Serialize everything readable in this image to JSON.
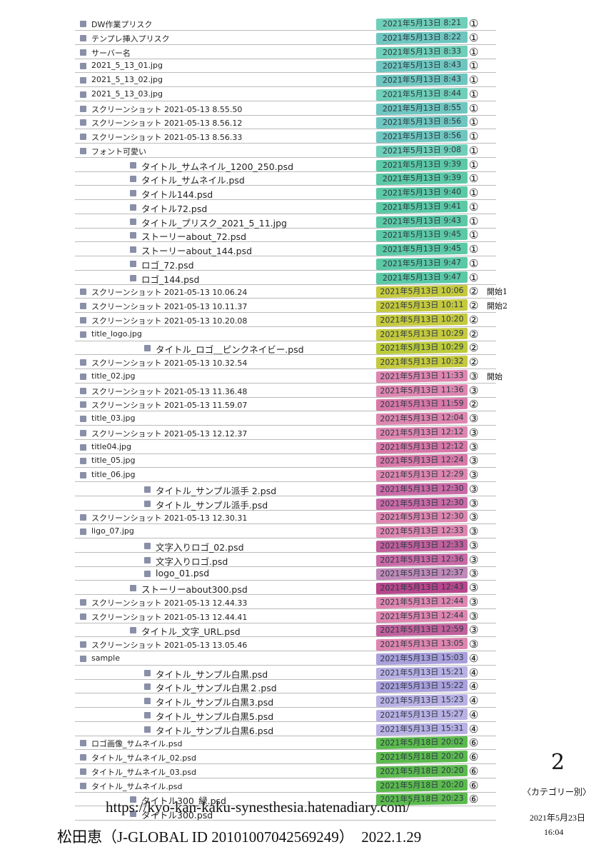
{
  "rows": [
    {
      "name": "DW作業プリスク",
      "date": "2021年5月13日 8:21",
      "mark": "①",
      "color": "#6fcfb8"
    },
    {
      "name": "テンプレ挿入プリスク",
      "date": "2021年5月13日 8:22",
      "mark": "①",
      "color": "#6fc6c0"
    },
    {
      "name": "サーバー名",
      "date": "2021年5月13日 8:33",
      "mark": "①",
      "color": "#6fcfb8"
    },
    {
      "name": "2021_5_13_01.jpg",
      "date": "2021年5月13日 8:43",
      "mark": "①",
      "color": "#6fc6c0"
    },
    {
      "name": "2021_5_13_02.jpg",
      "date": "2021年5月13日 8:43",
      "mark": "①",
      "color": "#6fc6c0"
    },
    {
      "name": "2021_5_13_03.jpg",
      "date": "2021年5月13日 8:44",
      "mark": "①",
      "color": "#6fcfb8"
    },
    {
      "name": "スクリーンショット 2021-05-13 8.55.50",
      "date": "2021年5月13日 8:55",
      "mark": "①",
      "color": "#6fc6c0"
    },
    {
      "name": "スクリーンショット 2021-05-13 8.56.12",
      "date": "2021年5月13日 8:56",
      "mark": "①",
      "color": "#6fc6c0"
    },
    {
      "name": "スクリーンショット 2021-05-13 8.56.33",
      "date": "2021年5月13日 8:56",
      "mark": "①",
      "color": "#6fc6c0"
    },
    {
      "name": "フォント可愛い",
      "date": "2021年5月13日 9:08",
      "mark": "①",
      "color": "#6fcfb8"
    },
    {
      "name": "タイトル_サムネイル_1200_250.psd",
      "date": "2021年5月13日 9:39",
      "mark": "①",
      "color": "#5cc9a6"
    },
    {
      "name": "タイトル_サムネイル.psd",
      "date": "2021年5月13日 9:39",
      "mark": "①",
      "color": "#5cc9a6"
    },
    {
      "name": "タイトル144.psd",
      "date": "2021年5月13日 9:40",
      "mark": "①",
      "color": "#5cc9a6"
    },
    {
      "name": "タイトル72.psd",
      "date": "2021年5月13日 9:41",
      "mark": "①",
      "color": "#5cc9a6"
    },
    {
      "name": "タイトル_プリスク_2021_5_11.jpg",
      "date": "2021年5月13日 9:43",
      "mark": "①",
      "color": "#5cc9a6"
    },
    {
      "name": "ストーリーabout_72.psd",
      "date": "2021年5月13日 9:45",
      "mark": "①",
      "color": "#5cc9a6"
    },
    {
      "name": "ストーリーabout_144.psd",
      "date": "2021年5月13日 9:45",
      "mark": "①",
      "color": "#5cc9a6"
    },
    {
      "name": "ロゴ_72.psd",
      "date": "2021年5月13日 9:47",
      "mark": "①",
      "color": "#5cc9a6"
    },
    {
      "name": "ロゴ_144.psd",
      "date": "2021年5月13日 9:47",
      "mark": "①",
      "color": "#5cc9a6"
    },
    {
      "name": "スクリーンショット 2021-05-13 10.06.24",
      "date": "2021年5月13日 10:06",
      "mark": "②",
      "note": "開始1",
      "color": "#c5c93e"
    },
    {
      "name": "スクリーンショット 2021-05-13 10.11.37",
      "date": "2021年5月13日 10:11",
      "mark": "②",
      "note": "開始2",
      "color": "#c5c93e"
    },
    {
      "name": "スクリーンショット 2021-05-13 10.20.08",
      "date": "2021年5月13日 10:20",
      "mark": "②",
      "color": "#c5c93e"
    },
    {
      "name": "title_logo.jpg",
      "date": "2021年5月13日 10:29",
      "mark": "②",
      "color": "#c5c93e"
    },
    {
      "name": "タイトル_ロゴ＿ピンクネイビー.psd",
      "date": "2021年5月13日 10:29",
      "mark": "②",
      "color": "#bccb3a"
    },
    {
      "name": "スクリーンショット 2021-05-13 10.32.54",
      "date": "2021年5月13日 10:32",
      "mark": "②",
      "color": "#c5c93e"
    },
    {
      "name": "title_02.jpg",
      "date": "2021年5月13日 11:33",
      "mark": "③",
      "note": "開始",
      "color": "#de86b0"
    },
    {
      "name": "スクリーンショット 2021-05-13 11.36.48",
      "date": "2021年5月13日 11:36",
      "mark": "③",
      "color": "#de86b0"
    },
    {
      "name": "スクリーンショット 2021-05-13 11.59.07",
      "date": "2021年5月13日 11:59",
      "mark": "②",
      "color": "#d878a8"
    },
    {
      "name": "title_03.jpg",
      "date": "2021年5月13日 12:04",
      "mark": "③",
      "color": "#de86b0"
    },
    {
      "name": "スクリーンショット 2021-05-13 12.12.37",
      "date": "2021年5月13日 12:12",
      "mark": "③",
      "color": "#de86b0"
    },
    {
      "name": "title04.jpg",
      "date": "2021年5月13日 12:12",
      "mark": "③",
      "color": "#d878a8"
    },
    {
      "name": "title_05.jpg",
      "date": "2021年5月13日 12:24",
      "mark": "③",
      "color": "#d878a8"
    },
    {
      "name": "title_06.jpg",
      "date": "2021年5月13日 12:29",
      "mark": "③",
      "color": "#de86b0"
    },
    {
      "name": "タイトル_サンプル派手 2.psd",
      "date": "2021年5月13日 12:30",
      "mark": "③",
      "color": "#c96aa6"
    },
    {
      "name": "タイトル_サンプル派手.psd",
      "date": "2021年5月13日 12:30",
      "mark": "③",
      "color": "#c96aa6"
    },
    {
      "name": "スクリーンショット 2021-05-13 12.30.31",
      "date": "2021年5月13日 12:30",
      "mark": "③",
      "color": "#de86b0"
    },
    {
      "name": "ligo_07.jpg",
      "date": "2021年5月13日 12:33",
      "mark": "③",
      "color": "#de86b0"
    },
    {
      "name": "文字入りロゴ_02.psd",
      "date": "2021年5月13日 12:33",
      "mark": "③",
      "color": "#c0609c"
    },
    {
      "name": "文字入りロゴ.psd",
      "date": "2021年5月13日 12:36",
      "mark": "③",
      "color": "#c96aa6"
    },
    {
      "name": "logo_01.psd",
      "date": "2021年5月13日 12:37",
      "mark": "③",
      "color": "#c08ab8"
    },
    {
      "name": "ストーリーabout300.psd",
      "date": "2021年5月13日 12:43",
      "mark": "③",
      "color": "#b8468c"
    },
    {
      "name": "スクリーンショット 2021-05-13 12.44.33",
      "date": "2021年5月13日 12:44",
      "mark": "③",
      "color": "#de86b0"
    },
    {
      "name": "スクリーンショット 2021-05-13 12.44.41",
      "date": "2021年5月13日 12:44",
      "mark": "③",
      "color": "#de86b0"
    },
    {
      "name": "タイトル_文字_URL.psd",
      "date": "2021年5月13日 12:59",
      "mark": "③",
      "color": "#c0609c"
    },
    {
      "name": "スクリーンショット 2021-05-13 13.05.46",
      "date": "2021年5月13日 13:05",
      "mark": "③",
      "color": "#de86b0"
    },
    {
      "name": "sample",
      "date": "2021年5月13日 15:03",
      "mark": "④",
      "color": "#aaa0dc"
    },
    {
      "name": "タイトル_サンプル白黒.psd",
      "date": "2021年5月13日 15:21",
      "mark": "④",
      "color": "#b9b0e4"
    },
    {
      "name": "タイトル_サンプル白黒２.psd",
      "date": "2021年5月13日 15:22",
      "mark": "④",
      "color": "#aaa0dc"
    },
    {
      "name": "タイトル_サンプル白黒3.psd",
      "date": "2021年5月13日 15:23",
      "mark": "④",
      "color": "#b9b0e4"
    },
    {
      "name": "タイトル_サンプル白黒5.psd",
      "date": "2021年5月13日 15:27",
      "mark": "④",
      "color": "#b9b0e4"
    },
    {
      "name": "タイトル_サンプル白黒6.psd",
      "date": "2021年5月13日 15:31",
      "mark": "④",
      "color": "#b9b0e4"
    },
    {
      "name": "ロゴ画像_サムネイル.psd",
      "date": "2021年5月18日 20:02",
      "mark": "⑥",
      "color": "#5cba4e"
    },
    {
      "name": "タイトル_サムネイル_02.psd",
      "date": "2021年5月18日 20:20",
      "mark": "⑥",
      "color": "#5cba4e"
    },
    {
      "name": "タイトル_サムネイル_03.psd",
      "date": "2021年5月18日 20:20",
      "mark": "⑥",
      "color": "#5cba4e"
    },
    {
      "name": "タイトル_サムネイル.psd",
      "date": "2021年5月18日 20:20",
      "mark": "⑥",
      "color": "#5cba4e"
    },
    {
      "name": "タイトル300_緑.psd",
      "date": "2021年5月18日 20:23",
      "mark": "⑥",
      "color": "#5cba4e"
    },
    {
      "name": "タイトル300.psd"
    }
  ],
  "annotations": {
    "page_number": "2",
    "category": "〈カテゴリー別〉",
    "date": "2021年5月23日",
    "time": "16:04"
  },
  "footer": {
    "url": "https://kyo-kan-kaku-synesthesia.hatenadiary.com/",
    "author": "松田恵（J-GLOBAL ID 20101007042569249）　2022.1.29"
  }
}
